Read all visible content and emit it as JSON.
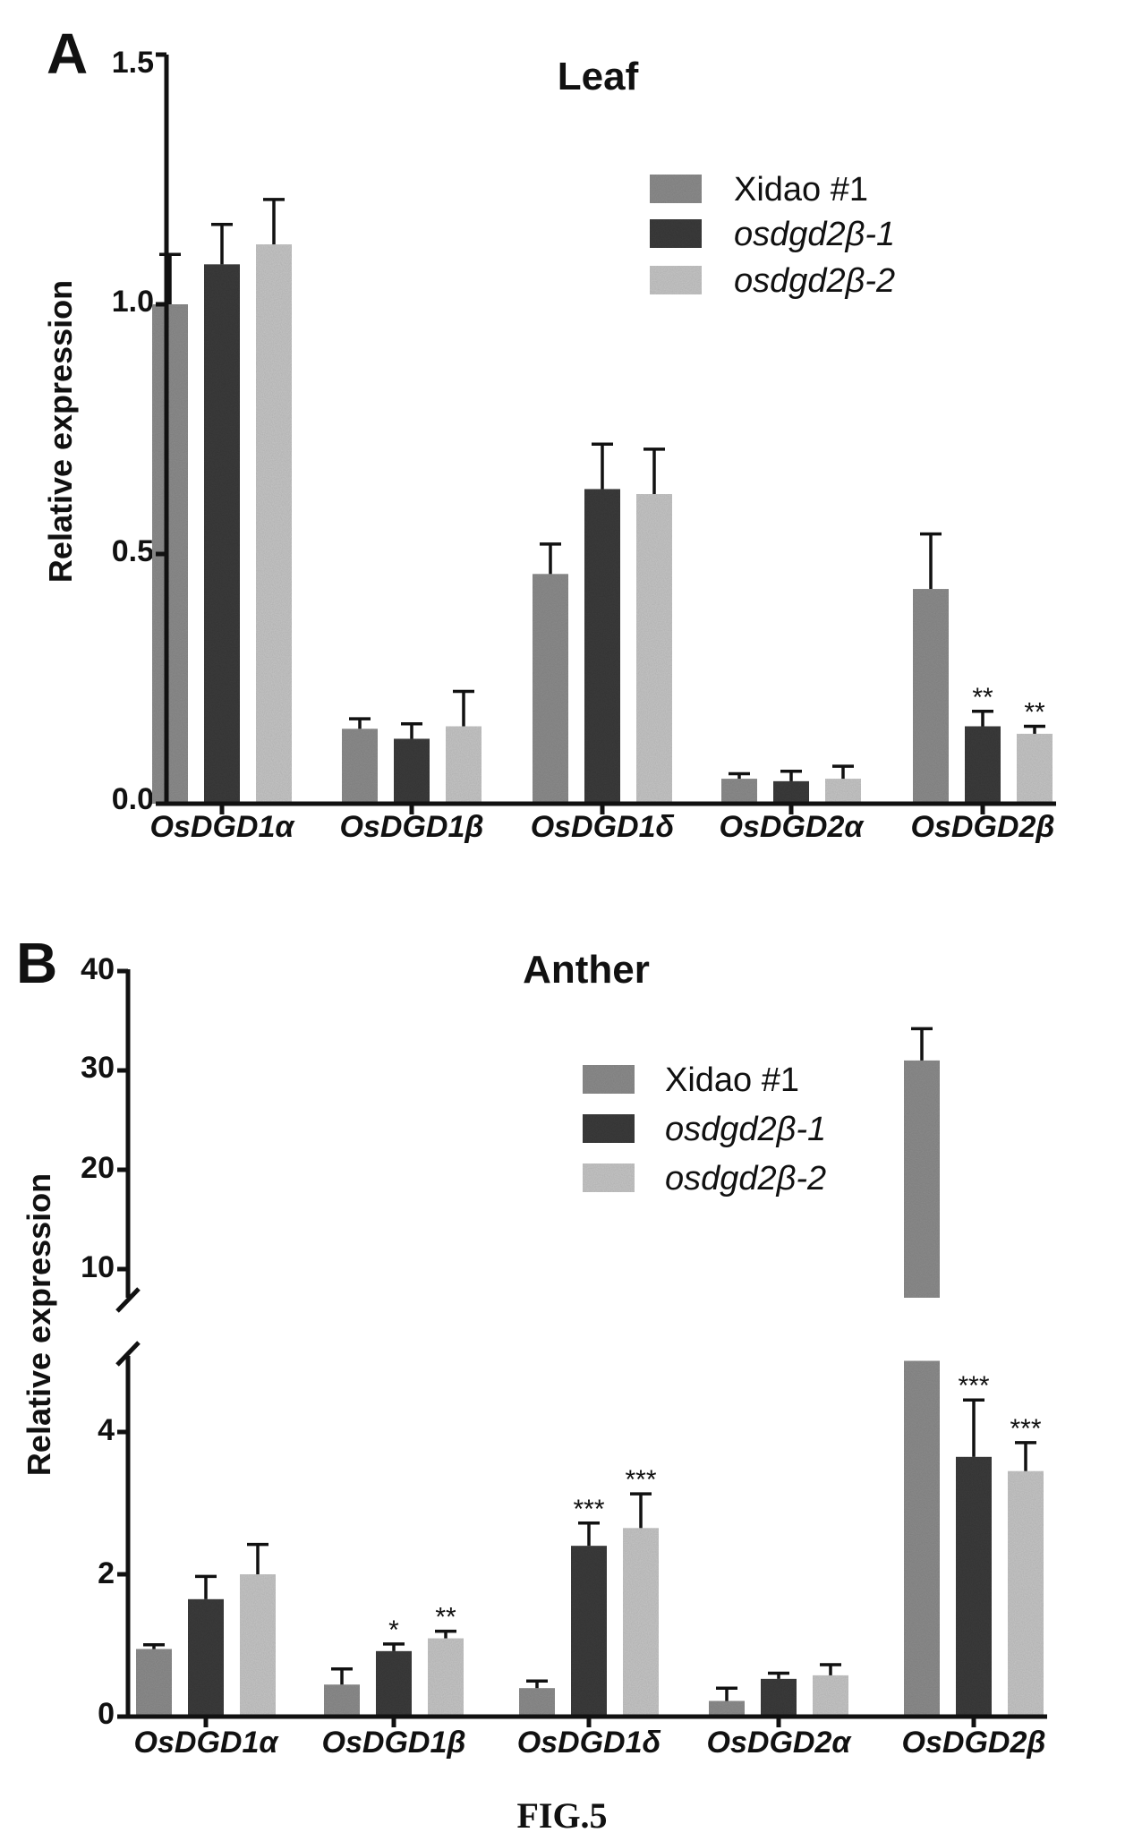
{
  "figure_label": "FIG.5",
  "colors": {
    "xidao": "#8e8e8e",
    "m1": "#3d3d3d",
    "m2": "#c8c8c8"
  },
  "chart_data": [
    {
      "panel": "A",
      "type": "bar",
      "title": "Leaf",
      "ylabel": "Relative expression",
      "categories": [
        "OsDGD1α",
        "OsDGD1β",
        "OsDGD1δ",
        "OsDGD2α",
        "OsDGD2β"
      ],
      "ylim": [
        0,
        1.5
      ],
      "yticks": [
        "0.0",
        "0.5",
        "1.0",
        "1.5"
      ],
      "legend_position": "top-right",
      "series": [
        {
          "name": "Xidao #1",
          "values": [
            1.0,
            0.15,
            0.46,
            0.05,
            0.43
          ],
          "errors": [
            0.1,
            0.02,
            0.06,
            0.01,
            0.11
          ],
          "sig": [
            "",
            "",
            "",
            "",
            ""
          ]
        },
        {
          "name": "osdgd2β-1",
          "values": [
            1.08,
            0.13,
            0.63,
            0.045,
            0.155
          ],
          "errors": [
            0.08,
            0.03,
            0.09,
            0.02,
            0.03
          ],
          "sig": [
            "",
            "",
            "",
            "",
            "**"
          ]
        },
        {
          "name": "osdgd2β-2",
          "values": [
            1.12,
            0.155,
            0.62,
            0.05,
            0.14
          ],
          "errors": [
            0.09,
            0.07,
            0.09,
            0.025,
            0.015
          ],
          "sig": [
            "",
            "",
            "",
            "",
            "**"
          ]
        }
      ]
    },
    {
      "panel": "B",
      "type": "bar",
      "title": "Anther",
      "ylabel": "Relative expression",
      "categories": [
        "OsDGD1α",
        "OsDGD1β",
        "OsDGD1δ",
        "OsDGD2α",
        "OsDGD2β"
      ],
      "axis_break": {
        "lower": [
          0,
          5
        ],
        "upper": [
          5,
          40
        ]
      },
      "yticks_lower": [
        "0",
        "2",
        "4"
      ],
      "yticks_upper": [
        "10",
        "20",
        "30",
        "40"
      ],
      "legend_position": "top-right",
      "series": [
        {
          "name": "Xidao #1",
          "values": [
            0.95,
            0.45,
            0.4,
            0.22,
            31.0
          ],
          "errors": [
            0.06,
            0.22,
            0.1,
            0.18,
            3.2
          ],
          "sig": [
            "",
            "",
            "",
            "",
            ""
          ]
        },
        {
          "name": "osdgd2β-1",
          "values": [
            1.65,
            0.92,
            2.4,
            0.53,
            3.65
          ],
          "errors": [
            0.32,
            0.1,
            0.32,
            0.08,
            0.8
          ],
          "sig": [
            "",
            "*",
            "***",
            "",
            "***"
          ]
        },
        {
          "name": "osdgd2β-2",
          "values": [
            2.0,
            1.1,
            2.65,
            0.58,
            3.45
          ],
          "errors": [
            0.42,
            0.1,
            0.48,
            0.15,
            0.4
          ],
          "sig": [
            "",
            "**",
            "***",
            "",
            "***"
          ]
        }
      ]
    }
  ]
}
